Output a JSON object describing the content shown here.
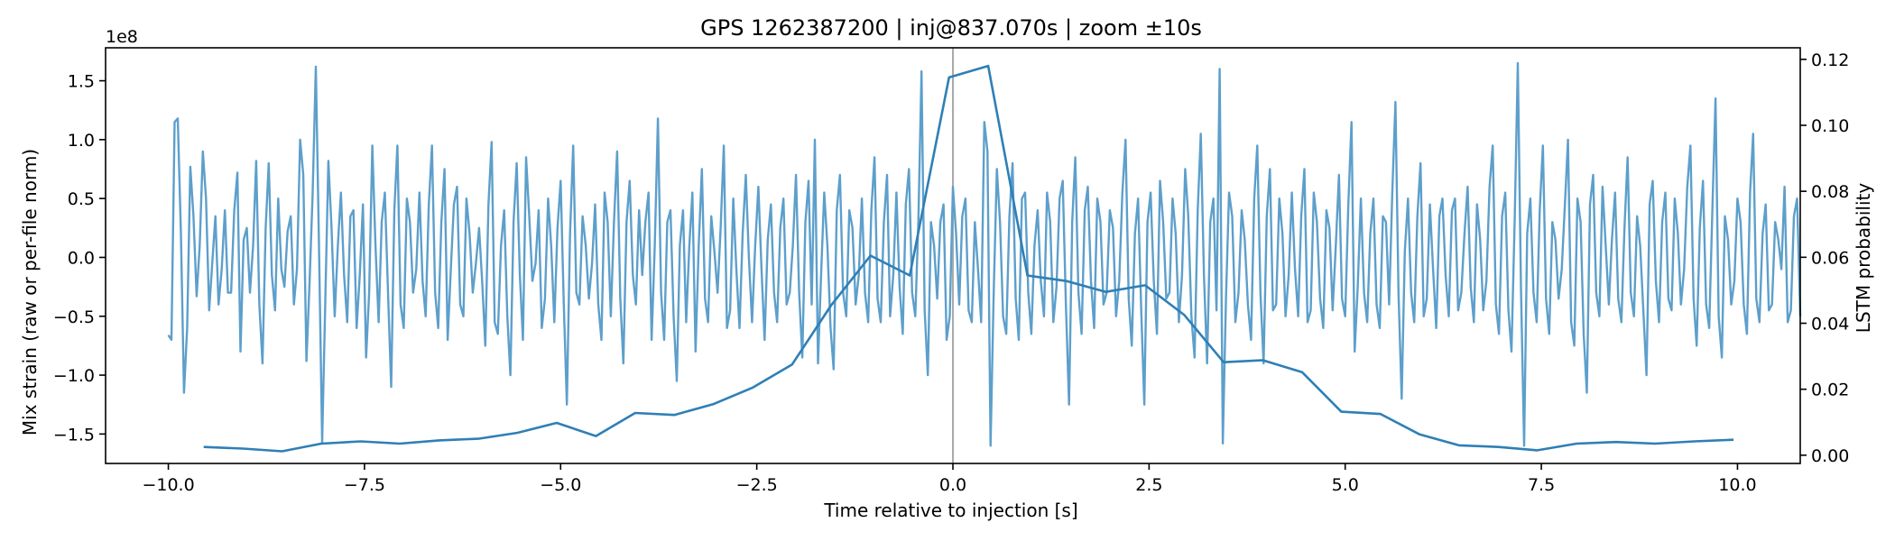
{
  "chart_data": {
    "type": "line",
    "title": "GPS 1262387200 | inj@837.070s | zoom ±10s",
    "xlabel": "Time relative to injection [s]",
    "ylabel_left": "Mix strain (raw or per-file norm)",
    "ylabel_right": "LSTM probability",
    "left_offset_text": "1e8",
    "xlim": [
      -10.8,
      10.8
    ],
    "ylim_left": [
      -1.75,
      1.78
    ],
    "ylim_right": [
      -0.0025,
      0.1235
    ],
    "x_ticks": [
      -10.0,
      -7.5,
      -5.0,
      -2.5,
      0.0,
      2.5,
      5.0,
      7.5,
      10.0
    ],
    "x_tick_labels": [
      "−10.0",
      "−7.5",
      "−5.0",
      "−2.5",
      "0.0",
      "2.5",
      "5.0",
      "7.5",
      "10.0"
    ],
    "y_left_ticks": [
      -1.5,
      -1.0,
      -0.5,
      0.0,
      0.5,
      1.0,
      1.5
    ],
    "y_left_tick_labels": [
      "−1.5",
      "−1.0",
      "−0.5",
      "0.0",
      "0.5",
      "1.0",
      "1.5"
    ],
    "y_right_ticks": [
      0.0,
      0.02,
      0.04,
      0.06,
      0.08,
      0.1,
      0.12
    ],
    "y_right_tick_labels": [
      "0.00",
      "0.02",
      "0.04",
      "0.06",
      "0.08",
      "0.10",
      "0.12"
    ],
    "vline_x": 0.0,
    "grid": false,
    "colors": {
      "strain": "#5d9fcb",
      "probability": "#2f7fb6",
      "vline": "#aaaaaa",
      "axes": "#000000"
    },
    "strain_series": {
      "name": "Mix strain",
      "axis": "left",
      "x_start": -10.0,
      "x_step": 0.04,
      "values_1e8": [
        -0.66,
        -0.7,
        1.15,
        1.18,
        0.2,
        -1.15,
        -0.6,
        0.77,
        0.35,
        -0.33,
        0.1,
        0.9,
        0.5,
        -0.45,
        -0.05,
        0.35,
        -0.4,
        -0.1,
        0.4,
        -0.3,
        -0.3,
        0.4,
        0.72,
        -0.8,
        0.15,
        0.25,
        -0.3,
        0.1,
        0.82,
        -0.4,
        -0.9,
        0.25,
        0.8,
        -0.15,
        -0.45,
        0.5,
        -0.1,
        -0.25,
        0.22,
        0.35,
        -0.4,
        -0.1,
        1.0,
        0.7,
        -0.88,
        -0.2,
        0.55,
        1.62,
        0.1,
        -1.57,
        -0.4,
        0.82,
        0.25,
        -0.5,
        0.1,
        0.55,
        -0.15,
        -0.55,
        0.35,
        0.4,
        -0.6,
        -0.15,
        0.45,
        -0.85,
        -0.3,
        0.95,
        0.1,
        -0.55,
        0.3,
        0.55,
        -0.3,
        -1.1,
        0.4,
        0.95,
        -0.4,
        -0.6,
        0.5,
        0.3,
        -0.3,
        -0.1,
        0.55,
        -0.2,
        -0.5,
        0.45,
        0.95,
        -0.3,
        -0.6,
        0.3,
        0.75,
        -0.7,
        -0.1,
        0.45,
        0.6,
        -0.4,
        -0.5,
        0.5,
        0.2,
        -0.3,
        -0.05,
        0.25,
        -0.2,
        -0.75,
        0.45,
        0.98,
        -0.55,
        -0.65,
        0.1,
        0.4,
        -0.5,
        -1.0,
        0.3,
        0.8,
        -0.15,
        -0.7,
        0.85,
        0.35,
        -0.2,
        -0.05,
        0.4,
        -0.6,
        -0.35,
        0.5,
        0.1,
        -0.55,
        0.25,
        0.65,
        -0.4,
        -1.25,
        0.2,
        0.95,
        -0.3,
        -0.4,
        0.35,
        0.1,
        -0.35,
        -0.05,
        0.45,
        -0.4,
        -0.7,
        0.55,
        0.3,
        -0.5,
        0.3,
        0.9,
        -0.35,
        -0.9,
        0.3,
        0.65,
        -0.15,
        -0.4,
        0.4,
        -0.15,
        0.3,
        0.55,
        -0.7,
        0.1,
        1.18,
        -0.3,
        -0.7,
        0.3,
        0.4,
        -0.5,
        -1.05,
        0.1,
        0.4,
        -0.55,
        0.1,
        0.55,
        -0.8,
        0.1,
        0.75,
        -0.35,
        -0.55,
        0.35,
        0.05,
        -0.3,
        0.25,
        0.95,
        -0.6,
        -0.45,
        0.5,
        -0.1,
        -0.6,
        0.2,
        0.7,
        0.0,
        -0.55,
        0.1,
        0.6,
        -0.1,
        -0.7,
        0.15,
        0.45,
        -0.3,
        -0.55,
        0.25,
        0.5,
        -0.4,
        -0.3,
        0.1,
        0.7,
        -0.3,
        -0.85,
        0.3,
        0.65,
        -0.4,
        1.0,
        -0.9,
        -0.15,
        0.55,
        0.1,
        -0.6,
        -0.95,
        0.4,
        0.7,
        -0.3,
        -0.5,
        0.4,
        0.25,
        -0.4,
        -0.15,
        0.5,
        -0.3,
        -0.55,
        0.4,
        0.85,
        -0.35,
        -0.55,
        0.3,
        0.7,
        -0.5,
        -0.15,
        0.55,
        -0.25,
        -0.65,
        0.45,
        0.75,
        -0.3,
        -0.5,
        0.3,
        1.58,
        -0.45,
        -1.0,
        0.3,
        0.1,
        -0.35,
        0.3,
        0.45,
        -0.7,
        -0.5,
        0.6,
        0.2,
        -0.4,
        0.35,
        0.5,
        -0.45,
        -0.55,
        0.3,
        -0.1,
        -0.55,
        1.15,
        0.9,
        -1.6,
        -0.3,
        0.75,
        0.3,
        -0.5,
        -0.65,
        0.35,
        0.8,
        -0.35,
        -0.7,
        0.5,
        0.55,
        -0.3,
        -0.65,
        0.1,
        0.4,
        -0.2,
        -0.5,
        0.55,
        0.3,
        -0.55,
        -0.25,
        0.5,
        0.65,
        -0.4,
        -1.25,
        0.3,
        0.85,
        -0.3,
        -0.65,
        0.4,
        0.6,
        -0.2,
        -0.6,
        0.5,
        0.3,
        -0.4,
        -0.3,
        0.4,
        0.25,
        -0.5,
        -0.2,
        0.55,
        1.0,
        -0.35,
        -0.75,
        0.2,
        0.5,
        -0.45,
        -1.25,
        0.3,
        0.55,
        -0.2,
        -0.65,
        0.65,
        0.3,
        -0.35,
        -0.3,
        0.5,
        0.2,
        -0.55,
        -0.15,
        0.75,
        0.35,
        -0.5,
        -0.85,
        0.4,
        1.05,
        -0.15,
        -0.9,
        0.3,
        0.5,
        -0.45,
        1.6,
        -1.58,
        -0.35,
        0.55,
        0.35,
        -0.55,
        -0.3,
        0.4,
        0.15,
        -0.4,
        -0.7,
        0.5,
        0.95,
        -0.3,
        -0.9,
        0.35,
        0.75,
        -0.45,
        -0.4,
        0.5,
        0.2,
        -0.5,
        -0.15,
        0.55,
        -0.1,
        -0.5,
        0.35,
        0.75,
        -0.55,
        -0.45,
        0.55,
        0.3,
        -0.35,
        -0.6,
        0.4,
        0.25,
        -0.45,
        0.1,
        0.7,
        -0.35,
        -0.5,
        0.45,
        1.15,
        -0.8,
        -0.25,
        0.5,
        -0.3,
        -0.55,
        0.2,
        0.5,
        -0.4,
        -0.6,
        0.35,
        0.3,
        -0.4,
        0.55,
        1.32,
        -0.3,
        -1.2,
        0.05,
        0.5,
        -0.3,
        -0.55,
        0.35,
        0.8,
        -0.5,
        -0.35,
        0.45,
        -0.1,
        -0.6,
        0.35,
        0.5,
        -0.15,
        -0.5,
        0.4,
        0.5,
        -0.45,
        -0.3,
        0.2,
        0.6,
        -0.25,
        -0.55,
        0.45,
        0.15,
        -0.45,
        -0.2,
        0.6,
        0.95,
        -0.4,
        -0.65,
        0.35,
        0.55,
        -0.45,
        -0.8,
        0.3,
        1.65,
        -0.25,
        -1.6,
        0.2,
        0.5,
        -0.3,
        -0.55,
        0.4,
        0.95,
        -0.35,
        -0.65,
        0.3,
        0.15,
        -0.35,
        -0.1,
        0.45,
        1.0,
        -0.55,
        -0.75,
        0.5,
        0.3,
        -0.65,
        -1.15,
        0.45,
        0.7,
        -0.3,
        -0.5,
        0.6,
        0.1,
        -0.4,
        0.15,
        0.55,
        -0.35,
        -0.55,
        0.25,
        0.85,
        -0.3,
        -0.5,
        0.35,
        0.1,
        -0.45,
        -1.0,
        0.45,
        0.65,
        -0.2,
        -0.55,
        0.3,
        0.55,
        -0.35,
        -0.45,
        0.5,
        0.2,
        -0.4,
        -0.1,
        0.6,
        0.95,
        -0.35,
        -0.75,
        0.25,
        0.65,
        -0.4,
        -0.6,
        0.4,
        1.35,
        -0.5,
        -0.85,
        0.35,
        0.15,
        -0.4,
        -0.2,
        0.5,
        0.3,
        -0.4,
        -0.65,
        0.55,
        1.05,
        -0.35,
        -0.55,
        0.2,
        0.45,
        -0.45,
        -0.4,
        0.3,
        0.15,
        -0.1,
        0.6,
        -0.55,
        -0.45,
        0.35,
        0.5,
        -0.5
      ]
    },
    "probability_series": {
      "name": "LSTM probability",
      "axis": "right",
      "x": [
        -9.55,
        -9.05,
        -8.55,
        -8.05,
        -7.55,
        -7.05,
        -6.55,
        -6.05,
        -5.55,
        -5.05,
        -4.55,
        -4.05,
        -3.55,
        -3.05,
        -2.55,
        -2.05,
        -1.55,
        -1.05,
        -0.55,
        -0.05,
        0.45,
        0.95,
        1.45,
        1.95,
        2.45,
        2.95,
        3.45,
        3.95,
        4.45,
        4.95,
        5.45,
        5.95,
        6.45,
        6.95,
        7.45,
        7.95,
        8.45,
        8.95,
        9.45,
        9.95
      ],
      "y": [
        0.0025,
        0.002,
        0.0012,
        0.0035,
        0.0042,
        0.0035,
        0.0045,
        0.005,
        0.0068,
        0.0098,
        0.0058,
        0.0128,
        0.0122,
        0.0155,
        0.0205,
        0.0275,
        0.0455,
        0.0605,
        0.0545,
        0.1145,
        0.118,
        0.0545,
        0.0528,
        0.0495,
        0.0515,
        0.0425,
        0.0282,
        0.0288,
        0.0252,
        0.0132,
        0.0125,
        0.0063,
        0.003,
        0.0025,
        0.0015,
        0.0035,
        0.004,
        0.0035,
        0.0042,
        0.0047
      ]
    }
  }
}
